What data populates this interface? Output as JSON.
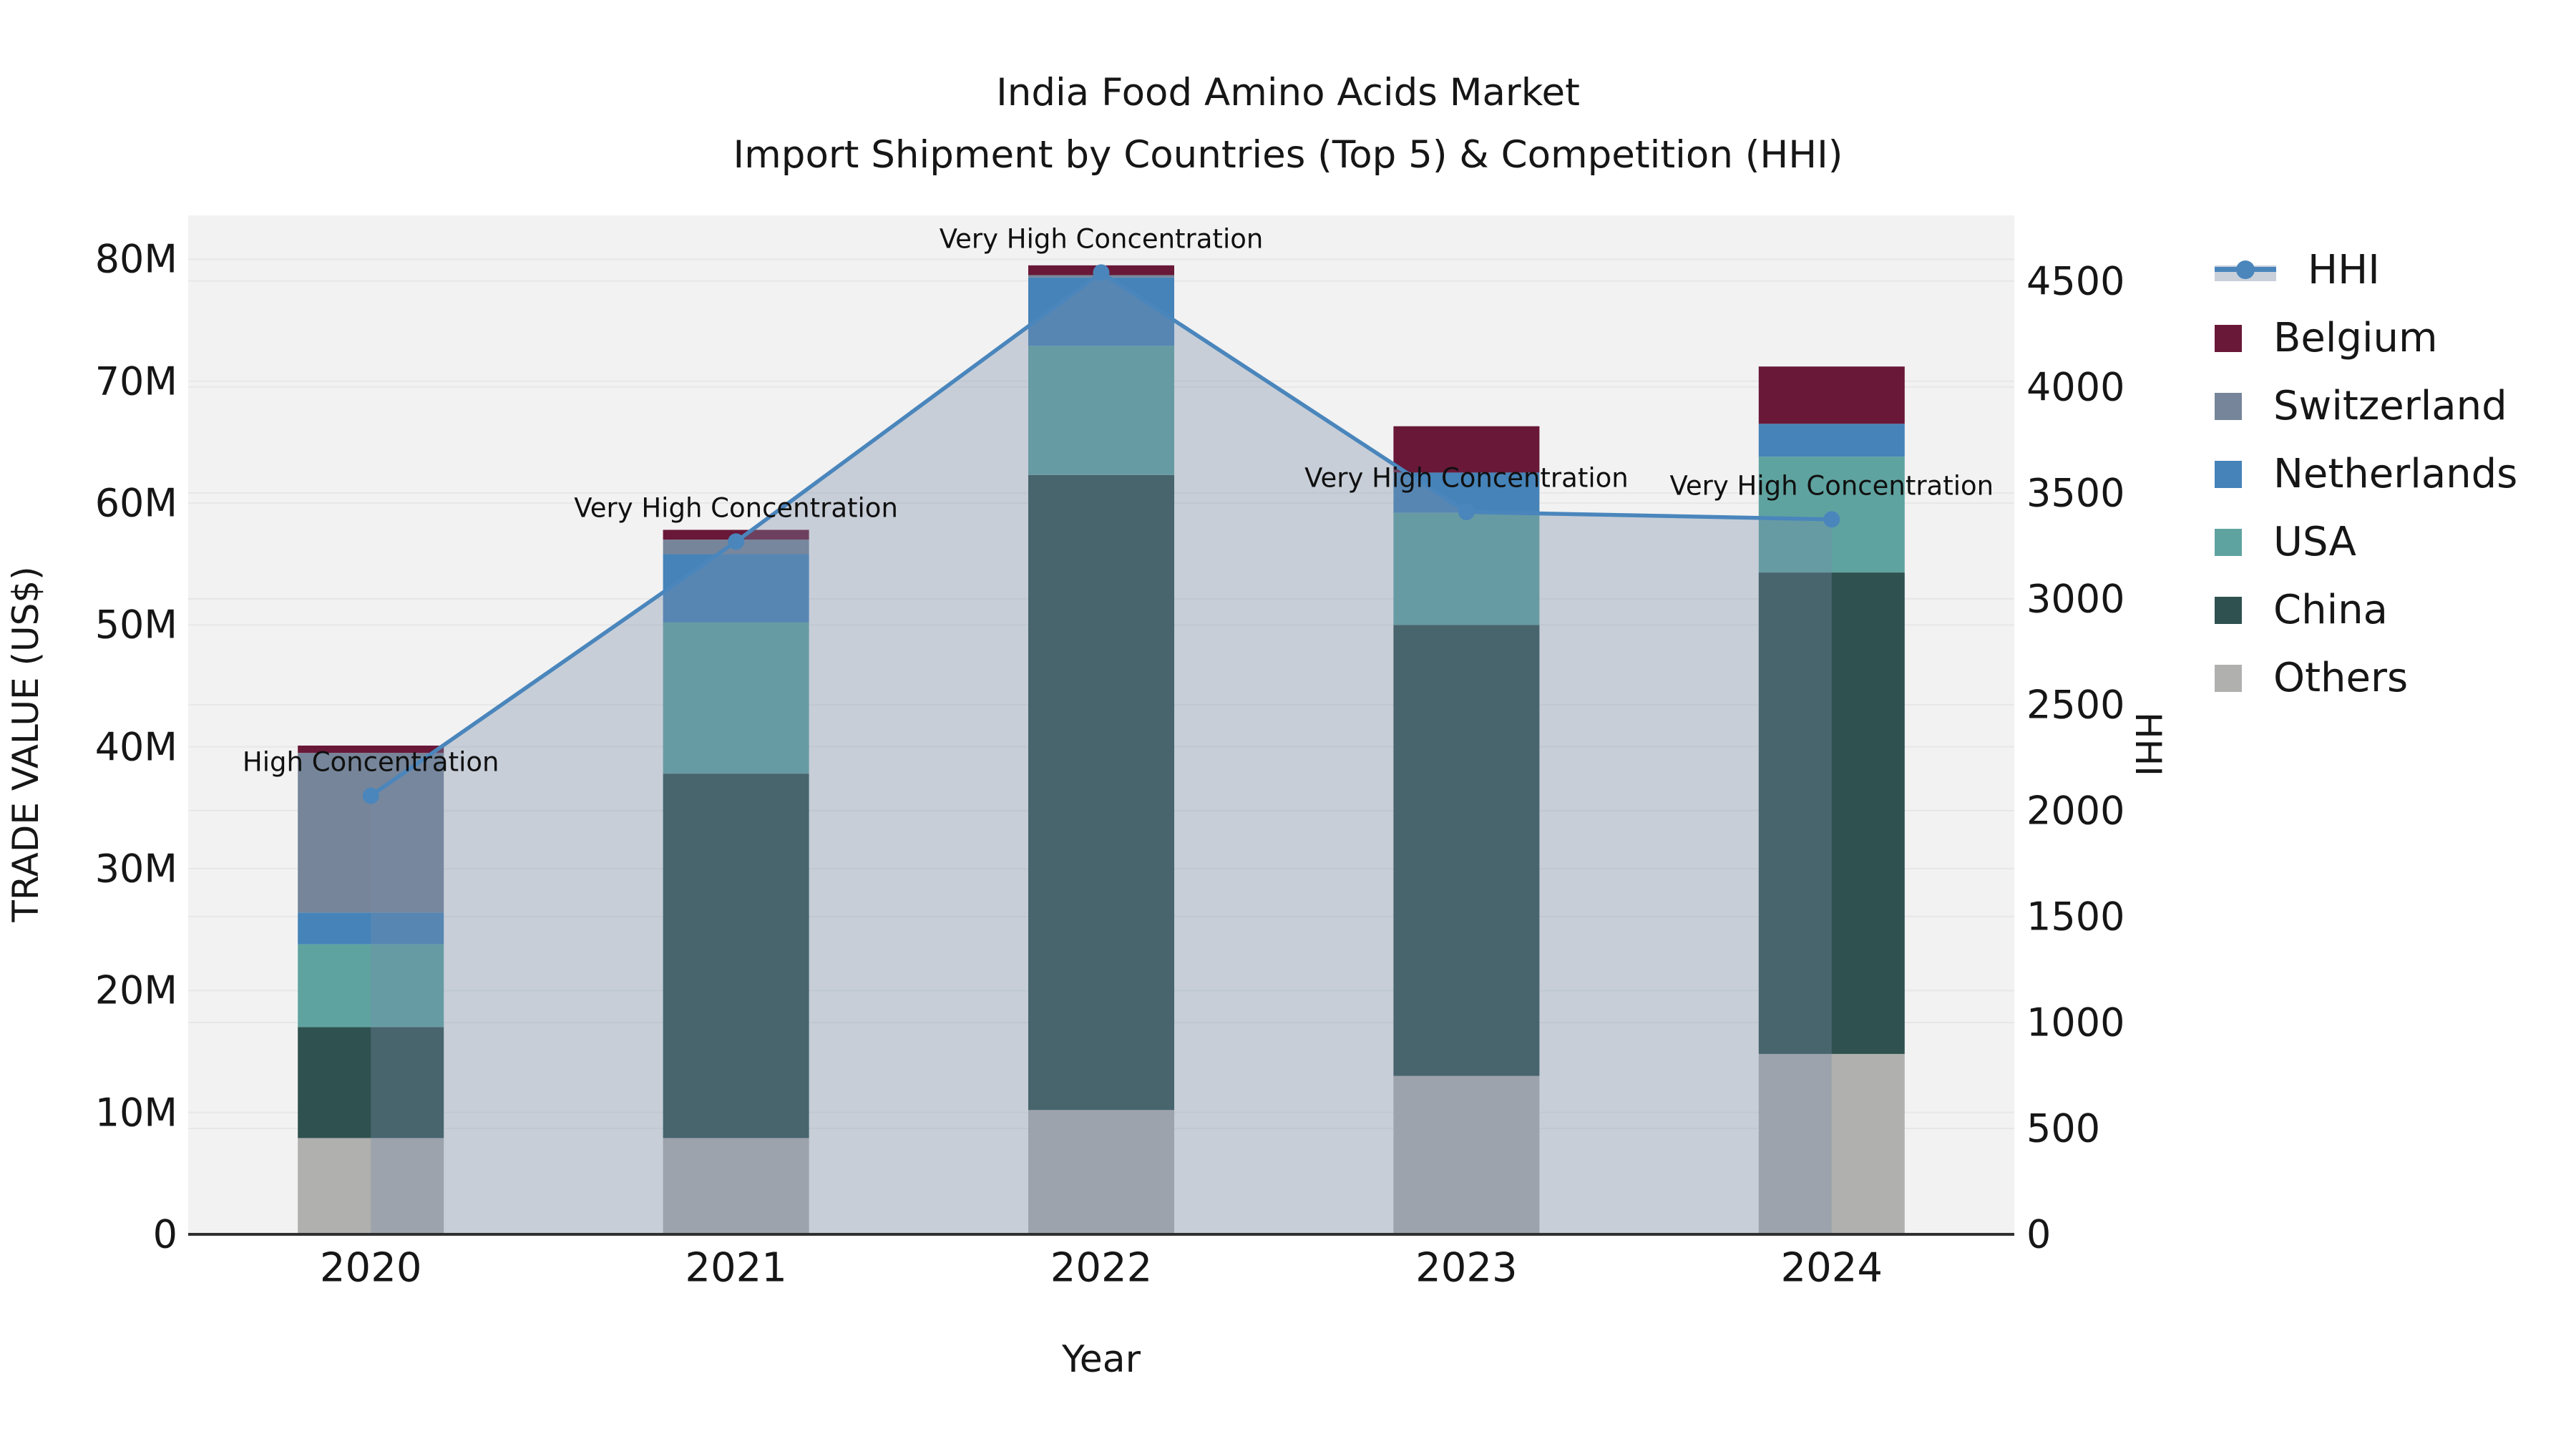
{
  "title": {
    "line1": "India Food Amino Acids Market",
    "line2": "Import Shipment by Countries (Top 5) & Competition (HHI)"
  },
  "axes": {
    "y_left": {
      "label": "TRADE VALUE (US$)",
      "tick_labels": [
        "0",
        "10M",
        "20M",
        "30M",
        "40M",
        "50M",
        "60M",
        "70M",
        "80M"
      ],
      "tick_values_m": [
        0,
        10,
        20,
        30,
        40,
        50,
        60,
        70,
        80
      ]
    },
    "y_right": {
      "label": "HHI",
      "tick_labels": [
        "0",
        "500",
        "1000",
        "1500",
        "2000",
        "2500",
        "3000",
        "3500",
        "4000",
        "4500"
      ],
      "tick_values": [
        0,
        500,
        1000,
        1500,
        2000,
        2500,
        3000,
        3500,
        4000,
        4500
      ]
    },
    "x": {
      "label": "Year",
      "categories": [
        "2020",
        "2021",
        "2022",
        "2023",
        "2024"
      ]
    }
  },
  "legend": {
    "items": [
      {
        "label": "HHI",
        "type": "line",
        "color": "#4A86BC"
      },
      {
        "label": "Belgium",
        "type": "box",
        "color": "#691838"
      },
      {
        "label": "Switzerland",
        "type": "box",
        "color": "#768599"
      },
      {
        "label": "Netherlands",
        "type": "box",
        "color": "#4583B8"
      },
      {
        "label": "USA",
        "type": "box",
        "color": "#5FA3A0"
      },
      {
        "label": "China",
        "type": "box",
        "color": "#2F514F"
      },
      {
        "label": "Others",
        "type": "box",
        "color": "#B0B0AE"
      }
    ]
  },
  "chart_data": {
    "type": "bar",
    "subtype": "stacked-bars-with-line",
    "title": "India Food Amino Acids Market — Import Shipment by Countries (Top 5) & Competition (HHI)",
    "xlabel": "Year",
    "ylabel": "TRADE VALUE (US$)",
    "y2label": "HHI",
    "categories": [
      "2020",
      "2021",
      "2022",
      "2023",
      "2024"
    ],
    "units": "US$ millions",
    "ylim": [
      0,
      83.6
    ],
    "y2lim": [
      0,
      4810
    ],
    "grid": true,
    "legend_position": "right",
    "stack_order_bottom_to_top": [
      "Others",
      "China",
      "USA",
      "Netherlands",
      "Switzerland",
      "Belgium"
    ],
    "series": [
      {
        "name": "Belgium",
        "color": "#691838",
        "values": [
          0.6,
          0.8,
          0.8,
          3.8,
          4.7
        ]
      },
      {
        "name": "Switzerland",
        "color": "#768599",
        "values": [
          13.1,
          1.2,
          0.2,
          0.0,
          0.0
        ]
      },
      {
        "name": "Netherlands",
        "color": "#4583B8",
        "values": [
          2.6,
          5.6,
          5.6,
          3.3,
          2.7
        ]
      },
      {
        "name": "USA",
        "color": "#5FA3A0",
        "values": [
          6.8,
          12.4,
          10.6,
          9.2,
          9.5
        ]
      },
      {
        "name": "China",
        "color": "#2F514F",
        "values": [
          9.1,
          29.9,
          52.1,
          37.0,
          39.5
        ]
      },
      {
        "name": "Others",
        "color": "#B0B0AE",
        "values": [
          7.9,
          7.9,
          10.2,
          13.0,
          14.8
        ]
      }
    ],
    "bar_totals_m": [
      40.1,
      57.8,
      79.5,
      66.3,
      71.2
    ],
    "line_series": {
      "name": "HHI",
      "color": "#4A86BC",
      "area_fill": "rgba(120,140,170,0.35)",
      "values": [
        2070,
        3270,
        4540,
        3410,
        3375
      ]
    },
    "annotations": [
      {
        "text": "High Concentration",
        "category": "2020"
      },
      {
        "text": "Very High Concentration",
        "category": "2021"
      },
      {
        "text": "Very High Concentration",
        "category": "2022"
      },
      {
        "text": "Very High Concentration",
        "category": "2023"
      },
      {
        "text": "Very High Concentration",
        "category": "2024"
      }
    ]
  },
  "style": {
    "plot_bg": "#F2F2F2",
    "grid_color": "#E7E7E7",
    "axis_line_color": "#303030"
  }
}
